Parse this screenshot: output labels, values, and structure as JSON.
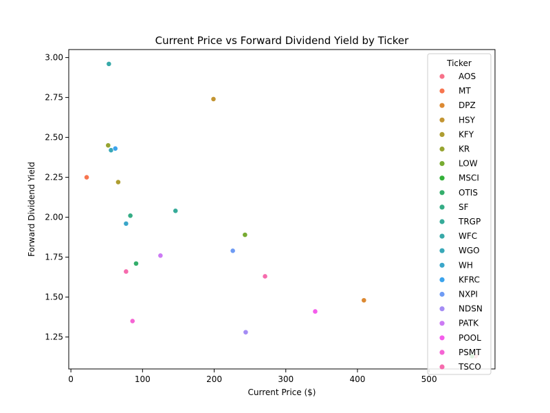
{
  "chart_data": {
    "type": "scatter",
    "title": "Current Price vs Forward Dividend Yield by Ticker",
    "xlabel": "Current Price ($)",
    "ylabel": "Forward Dividend Yield",
    "xlim": [
      -3,
      592
    ],
    "ylim": [
      1.05,
      3.05
    ],
    "xticks": [
      0,
      100,
      200,
      300,
      400,
      500
    ],
    "yticks": [
      1.25,
      1.5,
      1.75,
      2.0,
      2.25,
      2.5,
      2.75,
      3.0
    ],
    "xtick_labels": [
      "0",
      "100",
      "200",
      "300",
      "400",
      "500"
    ],
    "ytick_labels": [
      "1.25",
      "1.50",
      "1.75",
      "2.00",
      "2.25",
      "2.50",
      "2.75",
      "3.00"
    ],
    "grid": false,
    "legend": {
      "title": "Ticker",
      "placement": "top-right"
    },
    "series": [
      {
        "name": "AOS",
        "color": "#f77189",
        "x": 565,
        "y": 1.13
      },
      {
        "name": "MT",
        "color": "#f7754f",
        "x": 22,
        "y": 2.25
      },
      {
        "name": "DPZ",
        "color": "#dc8932",
        "x": 409,
        "y": 1.48
      },
      {
        "name": "HSY",
        "color": "#c39532",
        "x": 199,
        "y": 2.74
      },
      {
        "name": "KFY",
        "color": "#ae9d31",
        "x": 66,
        "y": 2.22
      },
      {
        "name": "KR",
        "color": "#97a431",
        "x": 52,
        "y": 2.45
      },
      {
        "name": "LOW",
        "color": "#77ab31",
        "x": 243,
        "y": 1.89
      },
      {
        "name": "MSCI",
        "color": "#33b039",
        "x": 560,
        "y": 1.13
      },
      {
        "name": "OTIS",
        "color": "#34ae6b",
        "x": 91,
        "y": 1.71
      },
      {
        "name": "SF",
        "color": "#35ac85",
        "x": 83,
        "y": 2.01
      },
      {
        "name": "TRGP",
        "color": "#36ab99",
        "x": 146,
        "y": 2.04
      },
      {
        "name": "WFC",
        "color": "#37a9a8",
        "x": 53,
        "y": 2.96
      },
      {
        "name": "WGO",
        "color": "#38a8b8",
        "x": 56,
        "y": 2.42
      },
      {
        "name": "WH",
        "color": "#3aa6c9",
        "x": 77,
        "y": 1.96
      },
      {
        "name": "KFRC",
        "color": "#3ba3ec",
        "x": 62,
        "y": 2.43
      },
      {
        "name": "NXPI",
        "color": "#6e9bf4",
        "x": 226,
        "y": 1.79
      },
      {
        "name": "NDSN",
        "color": "#a48cf4",
        "x": 244,
        "y": 1.28
      },
      {
        "name": "PATK",
        "color": "#cc7af4",
        "x": 125,
        "y": 1.76
      },
      {
        "name": "POOL",
        "color": "#f45deb",
        "x": 341,
        "y": 1.41
      },
      {
        "name": "PSMT",
        "color": "#f564d4",
        "x": 86,
        "y": 1.35
      },
      {
        "name": "TSCO",
        "color": "#f66bad",
        "x": 271,
        "y": 1.63
      },
      {
        "name": "TSCO",
        "color": "#f66bad",
        "x": 77,
        "y": 1.66
      }
    ]
  }
}
